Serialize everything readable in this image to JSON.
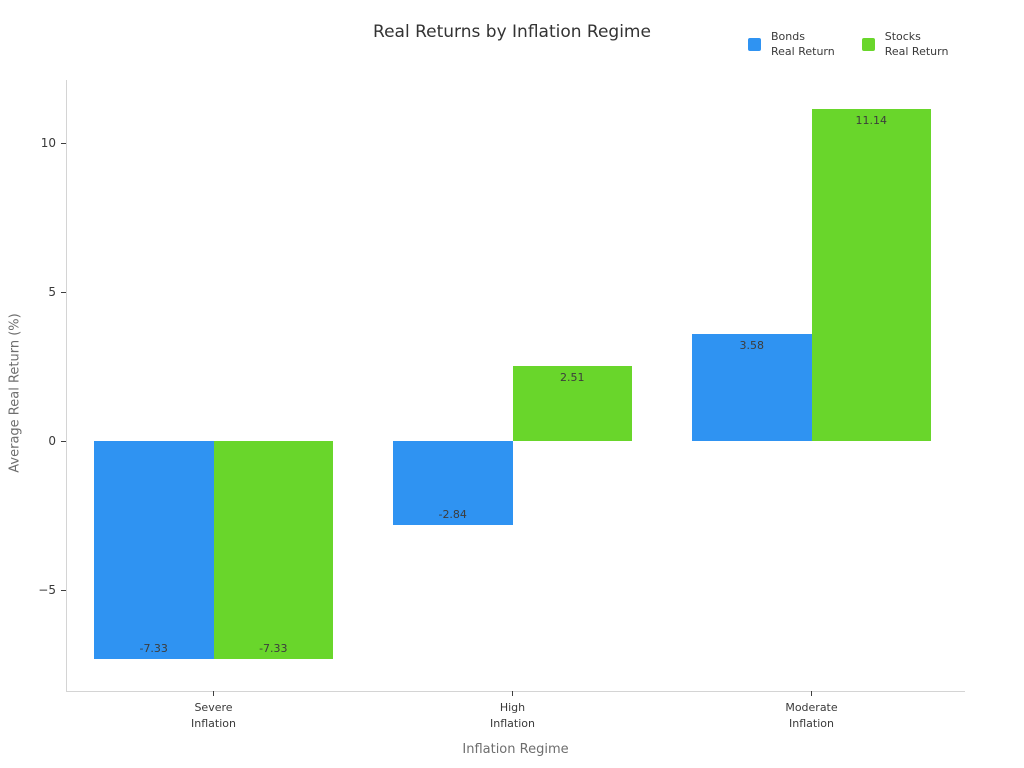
{
  "chart_data": {
    "type": "bar",
    "title": "Real Returns by Inflation Regime",
    "xlabel": "Inflation Regime",
    "ylabel": "Average Real Return (%)",
    "categories": [
      "Severe\nInflation",
      "High\nInflation",
      "Moderate\nInflation"
    ],
    "series": [
      {
        "name": "Bonds Real Return",
        "color": "#2F93F2",
        "values": [
          -7.33,
          -2.84,
          3.58
        ]
      },
      {
        "name": "Stocks Real Return",
        "color": "#69D62B",
        "values": [
          -7.33,
          2.51,
          11.14
        ]
      }
    ],
    "yticks": [
      -5,
      0,
      5,
      10
    ],
    "ylim": [
      -8.4,
      12.1
    ],
    "grid": false,
    "legend_position": "top-right",
    "bar_value_labels": true,
    "bar_value_format": "2dp"
  },
  "legend": {
    "entries": [
      {
        "label": "Bonds\nReal Return",
        "color": "#2F93F2"
      },
      {
        "label": "Stocks\nReal Return",
        "color": "#69D62B"
      }
    ]
  }
}
